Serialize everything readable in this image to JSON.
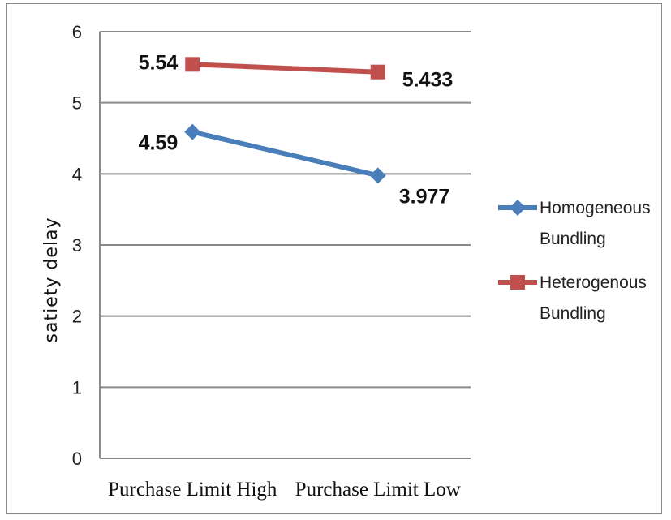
{
  "chart_data": {
    "type": "line",
    "categories": [
      "Purchase Limit High",
      "Purchase Limit Low"
    ],
    "series": [
      {
        "name": "Homogeneous Bundling",
        "values": [
          4.59,
          3.977
        ],
        "labels": [
          "4.59",
          "3.977"
        ],
        "color": "#4a7ebb",
        "marker": "diamond"
      },
      {
        "name": "Heterogenous Bundling",
        "values": [
          5.54,
          5.433
        ],
        "labels": [
          "5.54",
          "5.433"
        ],
        "color": "#c0504d",
        "marker": "square"
      }
    ],
    "xlabel": "",
    "ylabel": "satiety delay",
    "ylim": [
      0,
      6
    ],
    "yticks": [
      0,
      1,
      2,
      3,
      4,
      5,
      6
    ],
    "grid": true,
    "legend_position": "right"
  }
}
